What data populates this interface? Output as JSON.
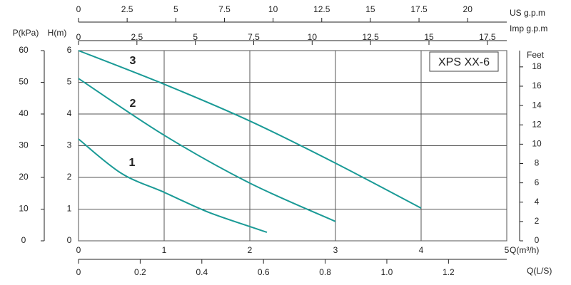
{
  "chart_data": {
    "type": "line",
    "title": "XPS XX-6",
    "x_label": "Q(m³/h)",
    "y_label": "H(m)",
    "xlim": [
      0,
      5
    ],
    "xticks": [
      0,
      1,
      2,
      3,
      4,
      5
    ],
    "ylim": [
      0,
      6
    ],
    "yticks": [
      0,
      1,
      2,
      3,
      4,
      5,
      6
    ],
    "grid": true,
    "series": [
      {
        "name": "1",
        "color": "#1a9a96",
        "x": [
          0,
          0.5,
          1,
          1.5,
          2,
          2.2
        ],
        "values": [
          3.21,
          2.13,
          1.53,
          0.92,
          0.45,
          0.27
        ]
      },
      {
        "name": "2",
        "color": "#1a9a96",
        "x": [
          0,
          1,
          2,
          3
        ],
        "values": [
          5.12,
          3.33,
          1.82,
          0.61
        ]
      },
      {
        "name": "3",
        "color": "#1a9a96",
        "x": [
          0,
          1,
          2,
          3,
          4
        ],
        "values": [
          6,
          4.94,
          3.78,
          2.45,
          1.03
        ]
      }
    ],
    "extra_axes": [
      {
        "position": "top",
        "label": "US  g.p.m",
        "lim": [
          0,
          22.01
        ],
        "ticks": [
          0,
          2.5,
          5,
          7.5,
          10,
          12.5,
          15,
          17.5,
          20
        ]
      },
      {
        "position": "top",
        "label": "Imp  g.p.m",
        "lim": [
          0,
          18.33
        ],
        "ticks": [
          0,
          2.5,
          5,
          7.5,
          10,
          12.5,
          15,
          17.5
        ]
      },
      {
        "position": "left",
        "label": "P(kPa)",
        "lim": [
          0,
          60
        ],
        "ticks": [
          0,
          10,
          20,
          30,
          40,
          50,
          60
        ]
      },
      {
        "position": "right",
        "label": "Feet",
        "lim": [
          0,
          19.685
        ],
        "ticks": [
          0,
          2,
          4,
          6,
          8,
          10,
          12,
          14,
          16,
          18
        ]
      },
      {
        "position": "bottom",
        "label": "Q(L/S)",
        "lim": [
          0,
          1.389
        ],
        "ticks": [
          0,
          0.2,
          0.4,
          0.6,
          0.8,
          {
            "value": 1,
            "label": "1.0"
          },
          1.2
        ]
      }
    ]
  }
}
